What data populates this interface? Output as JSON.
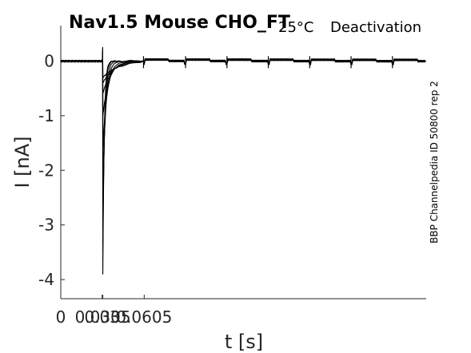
{
  "header": {
    "title": "Nav1.5  Mouse  CHO_FT",
    "temperature": "25°C",
    "protocol": "Deactivation"
  },
  "side_label": "BBP Channelpedia ID 50800 rep 2",
  "chart_data": {
    "type": "line",
    "title": "Nav1.5  Mouse  CHO_FT",
    "xlabel": "t [s]",
    "ylabel": "I [nA]",
    "xlim": [
      0,
      0.265
    ],
    "ylim": [
      -4.35,
      0.65
    ],
    "x_ticks": [
      0.0,
      0.03,
      0.0305,
      0.0605
    ],
    "x_tick_labels": [
      "0",
      "0.03",
      "0.0305",
      "0.0605"
    ],
    "y_ticks": [
      0,
      -1,
      -2,
      -3,
      -4
    ],
    "y_tick_labels": [
      "0",
      "-1",
      "-2",
      "-3",
      "-4"
    ],
    "grid": false,
    "legend": "none",
    "trace_color": "#000000",
    "series": [
      {
        "peak": -3.9,
        "tau": 0.001
      },
      {
        "peak": -3.4,
        "tau": 0.0012
      },
      {
        "peak": -2.9,
        "tau": 0.0016
      },
      {
        "peak": -2.3,
        "tau": 0.0022
      },
      {
        "peak": -1.6,
        "tau": 0.0032
      },
      {
        "peak": -1.0,
        "tau": 0.0045
      },
      {
        "peak": -0.6,
        "tau": 0.006
      },
      {
        "peak": -0.4,
        "tau": 0.0085
      },
      {
        "peak": -0.3,
        "tau": 0.011
      }
    ],
    "step_onset": 0.0305,
    "step_end": 0.0605,
    "pulse_times": [
      0.06,
      0.0905,
      0.1205,
      0.1505,
      0.1805,
      0.2105,
      0.2405
    ]
  }
}
